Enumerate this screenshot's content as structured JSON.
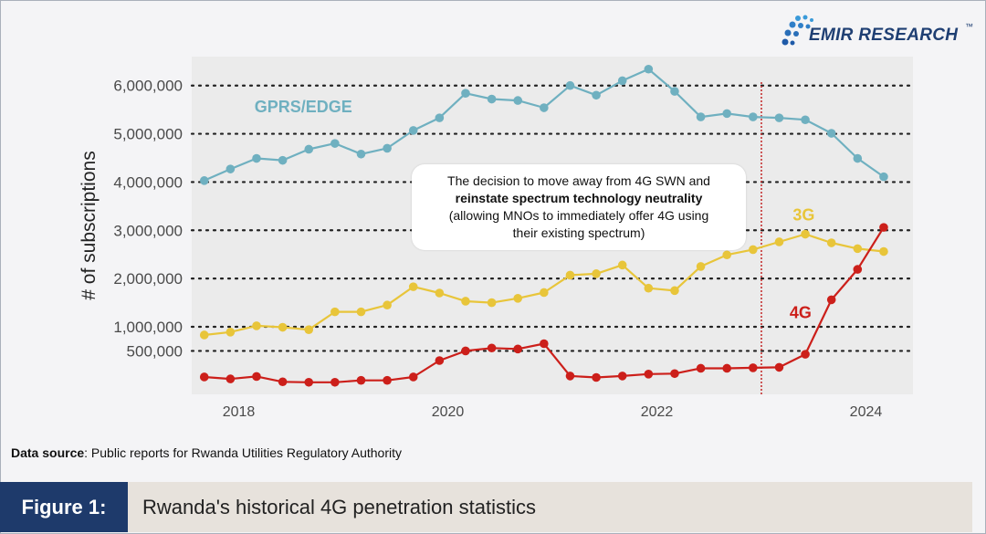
{
  "logo": {
    "name": "EMIR RESEARCH",
    "tm": "™"
  },
  "chart_data": {
    "type": "line",
    "title": "",
    "xlabel": "",
    "ylabel": "# of subscriptions",
    "xlim": [
      2017.55,
      2024.45
    ],
    "ylim": [
      -400000,
      6600000
    ],
    "x_ticks": [
      2018,
      2020,
      2022,
      2024
    ],
    "x_tick_labels": [
      "2018",
      "2020",
      "2022",
      "2024"
    ],
    "y_ticks": [
      500000,
      1000000,
      2000000,
      3000000,
      4000000,
      5000000,
      6000000
    ],
    "y_tick_labels": [
      "500,000",
      "1,000,000",
      "2,000,000",
      "3,000,000",
      "4,000,000",
      "5,000,000",
      "6,000,000"
    ],
    "grid": "dotted horizontal",
    "x": [
      2017.67,
      2017.92,
      2018.17,
      2018.42,
      2018.67,
      2018.92,
      2019.17,
      2019.42,
      2019.67,
      2019.92,
      2020.17,
      2020.42,
      2020.67,
      2020.92,
      2021.17,
      2021.42,
      2021.67,
      2021.92,
      2022.17,
      2022.42,
      2022.67,
      2022.92,
      2023.17,
      2023.42,
      2023.67,
      2023.92,
      2024.17
    ],
    "series": [
      {
        "name": "GPRS/EDGE",
        "color": "#6fb0c0",
        "values": [
          4030000,
          4270000,
          4490000,
          4450000,
          4680000,
          4800000,
          4580000,
          4700000,
          5070000,
          5330000,
          5840000,
          5720000,
          5690000,
          5540000,
          6000000,
          5800000,
          6100000,
          6340000,
          5880000,
          5350000,
          5420000,
          5350000,
          5330000,
          5290000,
          5010000,
          4490000,
          4110000
        ]
      },
      {
        "name": "3G",
        "color": "#e8c53a",
        "values": [
          830000,
          890000,
          1020000,
          990000,
          940000,
          1310000,
          1310000,
          1450000,
          1830000,
          1700000,
          1530000,
          1500000,
          1590000,
          1710000,
          2070000,
          2100000,
          2280000,
          1800000,
          1750000,
          2250000,
          2490000,
          2600000,
          2760000,
          2920000,
          2740000,
          2620000,
          2560000
        ]
      },
      {
        "name": "4G",
        "color": "#cc1f1a",
        "values": [
          -40000,
          -80000,
          -30000,
          -140000,
          -150000,
          -150000,
          -110000,
          -110000,
          -40000,
          300000,
          500000,
          560000,
          540000,
          650000,
          -20000,
          -50000,
          -20000,
          20000,
          30000,
          140000,
          140000,
          150000,
          160000,
          430000,
          1560000,
          2190000,
          3060000
        ]
      }
    ],
    "annotations": {
      "vertical_line_x": 2023.0,
      "vertical_line_color": "#c43030",
      "callout_lines": [
        "The decision to move away from 4G SWN and",
        "reinstate spectrum technology neutrality",
        "(allowing MNOs to immediately offer 4G using",
        "their existing spectrum)"
      ]
    }
  },
  "source": {
    "label": "Data source",
    "text": ": Public reports for Rwanda Utilities Regulatory Authority"
  },
  "figure": {
    "label": "Figure 1:",
    "title": "Rwanda's historical 4G penetration statistics"
  }
}
